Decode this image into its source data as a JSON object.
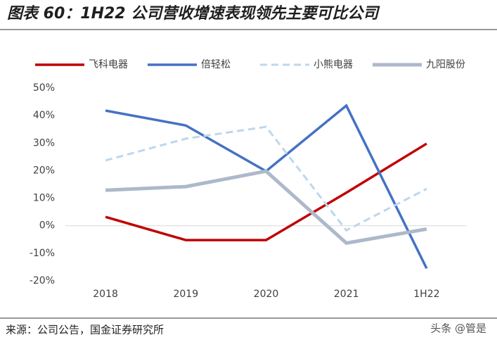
{
  "title": "图表 60：1H22 公司营收增速表现领先主要可比公司",
  "source": "来源：公司公告，国金证券研究所",
  "watermark": "头条 @管是",
  "chart_data": {
    "type": "line",
    "categories": [
      "2018",
      "2019",
      "2020",
      "2021",
      "1H22"
    ],
    "series": [
      {
        "name": "飞科电器",
        "color": "#c00000",
        "values": [
          3.2,
          -5.2,
          -5.2,
          12,
          29.8
        ]
      },
      {
        "name": "倍轻松",
        "color": "#4472c4",
        "values": [
          41.8,
          36.4,
          19.8,
          43.6,
          -15.5
        ]
      },
      {
        "name": "小熊电器",
        "color": "#bdd7ee",
        "dashed": true,
        "values": [
          23.7,
          31.6,
          35.9,
          -1.7,
          13.4
        ]
      },
      {
        "name": "九阳股份",
        "color": "#adb9ca",
        "values": [
          12.9,
          14.2,
          19.8,
          -6.3,
          -1.2
        ]
      }
    ],
    "ylim": [
      -20,
      50
    ],
    "yticks": [
      {
        "value": -20,
        "label": "-20%"
      },
      {
        "value": -10,
        "label": "-10%"
      },
      {
        "value": 0,
        "label": "0%"
      },
      {
        "value": 10,
        "label": "10%"
      },
      {
        "value": 20,
        "label": "20%"
      },
      {
        "value": 30,
        "label": "30%"
      },
      {
        "value": 40,
        "label": "40%"
      },
      {
        "value": 50,
        "label": "50%"
      }
    ]
  }
}
